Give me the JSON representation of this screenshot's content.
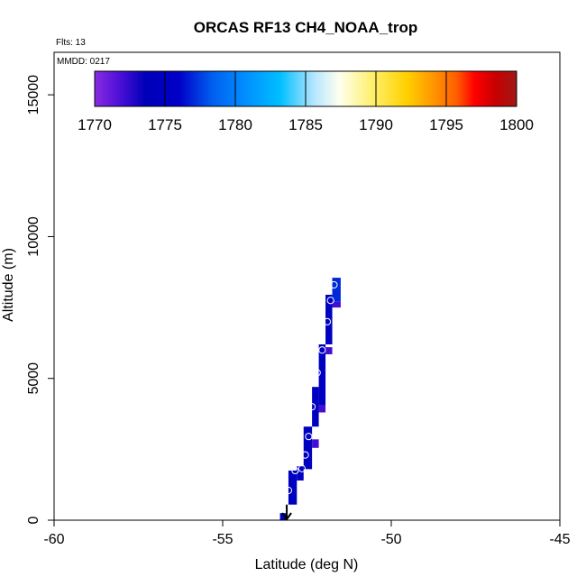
{
  "chart_data": {
    "type": "scatter",
    "title": "ORCAS RF13 CH4_NOAA_trop",
    "flights_note": "Flts: 13",
    "date_note": "MMDD: 0217",
    "xlabel": "Latitude (deg N)",
    "ylabel": "Altitude (m)",
    "xlim": [
      -60,
      -45
    ],
    "ylim": [
      0,
      16500
    ],
    "x_ticks": [
      -60,
      -55,
      -50,
      -45
    ],
    "x_tick_labels": [
      "-60",
      "-55",
      "-50",
      "-45"
    ],
    "y_ticks": [
      0,
      5000,
      10000,
      15000
    ],
    "y_tick_labels": [
      "0",
      "5000",
      "10000",
      "15000"
    ],
    "colorbar": {
      "range": [
        1770,
        1800
      ],
      "ticks": [
        1770,
        1775,
        1780,
        1785,
        1790,
        1795,
        1800
      ],
      "tick_labels": [
        "1770",
        "1775",
        "1780",
        "1785",
        "1790",
        "1795",
        "1800"
      ]
    },
    "tiles": [
      {
        "lat0": -53.3,
        "lat1": -53.1,
        "alt0": 0,
        "alt1": 250,
        "v": 1775
      },
      {
        "lat0": -53.05,
        "lat1": -52.8,
        "alt0": 550,
        "alt1": 1750,
        "v": 1775
      },
      {
        "lat0": -52.8,
        "lat1": -52.6,
        "alt0": 1400,
        "alt1": 1900,
        "v": 1775
      },
      {
        "lat0": -52.6,
        "lat1": -52.35,
        "alt0": 1800,
        "alt1": 3300,
        "v": 1775
      },
      {
        "lat0": -52.35,
        "lat1": -52.15,
        "alt0": 2550,
        "alt1": 2850,
        "v": 1772
      },
      {
        "lat0": -52.35,
        "lat1": -52.15,
        "alt0": 3300,
        "alt1": 4700,
        "v": 1775
      },
      {
        "lat0": -52.15,
        "lat1": -51.95,
        "alt0": 3800,
        "alt1": 4050,
        "v": 1772
      },
      {
        "lat0": -52.15,
        "lat1": -51.95,
        "alt0": 4050,
        "alt1": 6200,
        "v": 1775
      },
      {
        "lat0": -51.95,
        "lat1": -51.75,
        "alt0": 5850,
        "alt1": 6100,
        "v": 1772
      },
      {
        "lat0": -51.95,
        "lat1": -51.75,
        "alt0": 6200,
        "alt1": 7950,
        "v": 1775
      },
      {
        "lat0": -51.75,
        "lat1": -51.5,
        "alt0": 7500,
        "alt1": 7700,
        "v": 1772
      },
      {
        "lat0": -51.75,
        "lat1": -51.5,
        "alt0": 7700,
        "alt1": 8550,
        "v": 1777
      }
    ],
    "points": [
      {
        "lat": -53.05,
        "alt": 1050
      },
      {
        "lat": -52.85,
        "alt": 1750
      },
      {
        "lat": -52.65,
        "alt": 1820
      },
      {
        "lat": -52.55,
        "alt": 2300
      },
      {
        "lat": -52.45,
        "alt": 2950
      },
      {
        "lat": -52.35,
        "alt": 4000
      },
      {
        "lat": -52.2,
        "alt": 5200
      },
      {
        "lat": -52.05,
        "alt": 6000
      },
      {
        "lat": -51.9,
        "alt": 7000
      },
      {
        "lat": -51.8,
        "alt": 7750
      },
      {
        "lat": -51.7,
        "alt": 8300
      }
    ],
    "arrow": {
      "lat": -53.1,
      "alt_start": 550,
      "alt_end": 0
    }
  }
}
